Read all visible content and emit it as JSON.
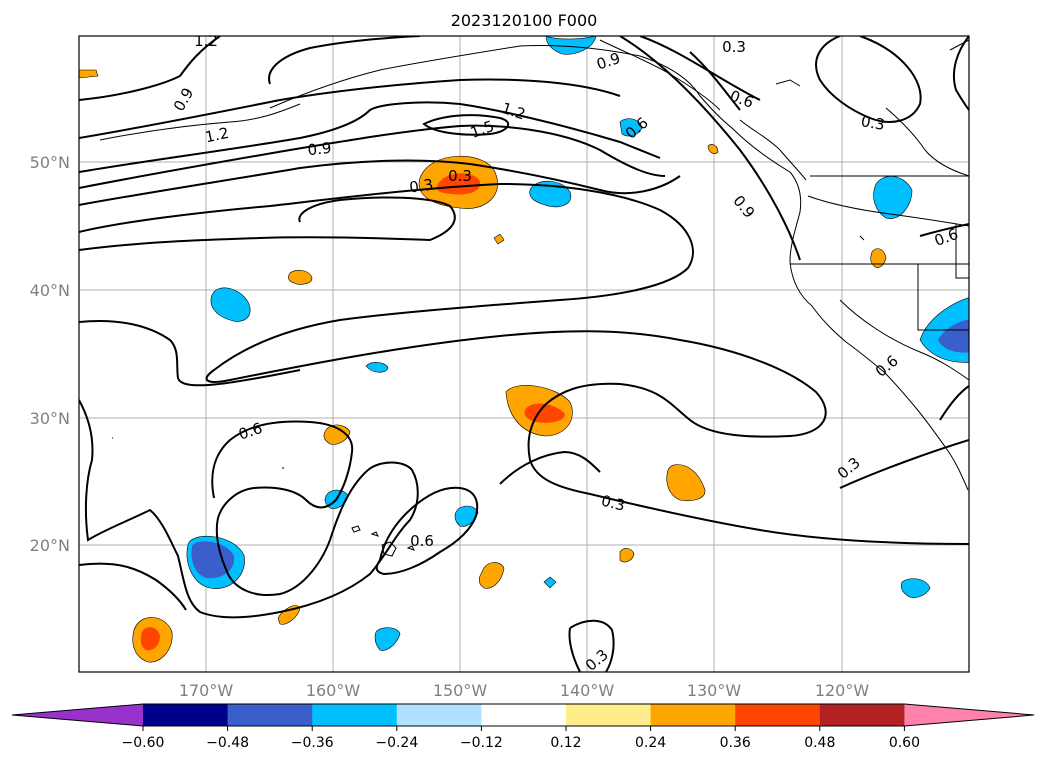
{
  "title": "2023120100 F000",
  "map": {
    "lat_labels": [
      "50°N",
      "40°N",
      "30°N",
      "20°N"
    ],
    "lon_labels": [
      "170°W",
      "160°W",
      "150°W",
      "140°W",
      "130°W",
      "120°W"
    ],
    "contour_labels": [
      "1.2",
      "0.9",
      "1.2",
      "1.5",
      "1.2",
      "0.9",
      "0.3",
      "0.6",
      "0.3",
      "0.6",
      "0.9",
      "0.3",
      "0.6",
      "0.9",
      "0.3",
      "0.6",
      "0.3",
      "0.3",
      "0.6",
      "0.3",
      "0.6"
    ]
  },
  "colorbar": {
    "ticks": [
      "−0.60",
      "−0.48",
      "−0.36",
      "−0.24",
      "−0.12",
      "0.12",
      "0.24",
      "0.36",
      "0.48",
      "0.60"
    ],
    "colors": [
      "#9932cc",
      "#00008b",
      "#3a5fcd",
      "#00bfff",
      "#b0e2ff",
      "#ffffff",
      "#ffec8b",
      "#ffa500",
      "#ff4500",
      "#b22222",
      "#ff82ab"
    ]
  }
}
